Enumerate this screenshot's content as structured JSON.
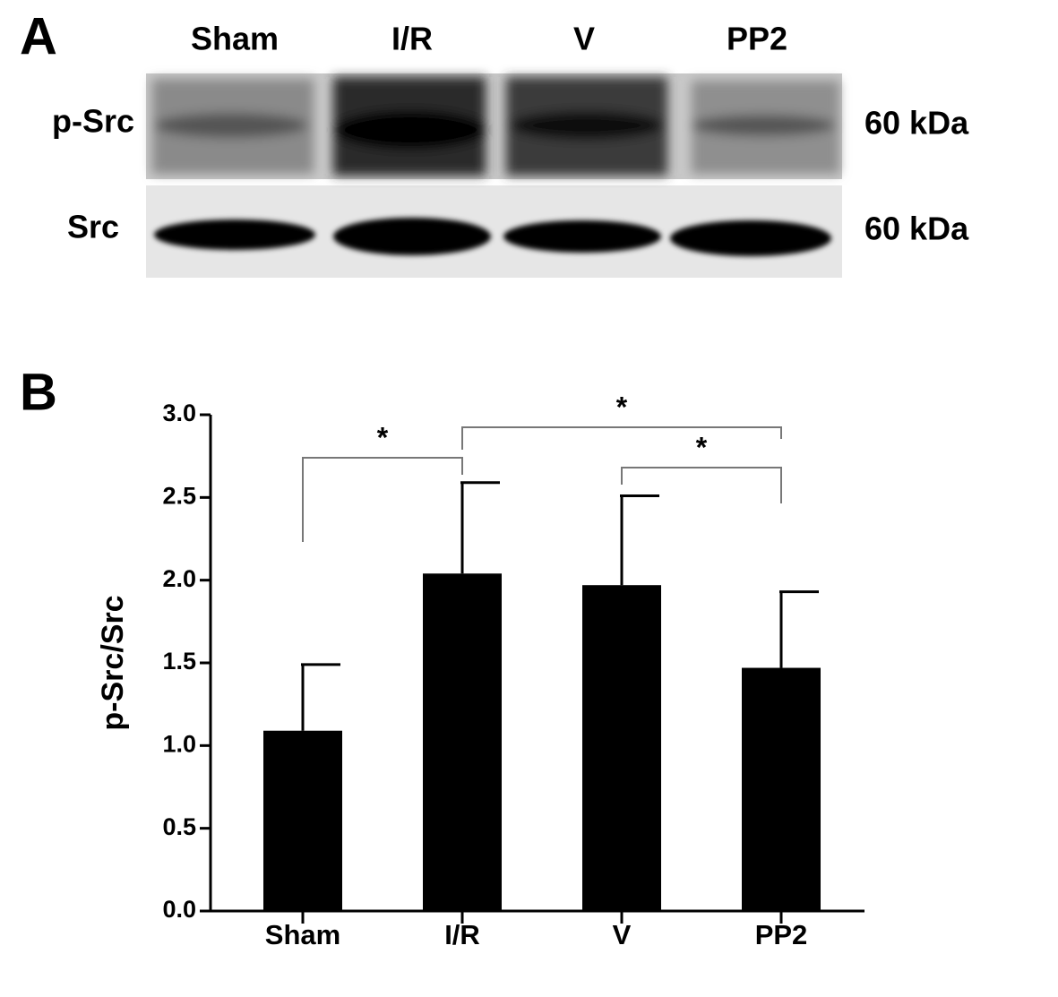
{
  "panel_a": {
    "label": "A",
    "lanes": [
      "Sham",
      "I/R",
      "V",
      "PP2"
    ],
    "rows": [
      {
        "name": "p-Src",
        "size": "60 kDa"
      },
      {
        "name": "Src",
        "size": "60 kDa"
      }
    ]
  },
  "chart_data": {
    "type": "bar",
    "panel_label": "B",
    "ylabel": "p-Src/Src",
    "categories": [
      "Sham",
      "I/R",
      "V",
      "PP2"
    ],
    "values": [
      1.09,
      2.04,
      1.97,
      1.47
    ],
    "errors": [
      0.4,
      0.55,
      0.54,
      0.46
    ],
    "color": "#000000",
    "ylim": [
      0,
      3
    ],
    "yticks": [
      {
        "value": 0,
        "label": "0.0"
      },
      0.5,
      {
        "value": 1,
        "label": "1.0"
      },
      1.5,
      {
        "value": 2,
        "label": "2.0"
      },
      2.5,
      {
        "value": 3,
        "label": "3.0"
      }
    ],
    "significance": [
      {
        "from": "Sham",
        "to": "I/R",
        "label": "*"
      },
      {
        "from": "I/R",
        "to": "PP2",
        "label": "*"
      },
      {
        "from": "V",
        "to": "PP2",
        "label": "*"
      }
    ]
  }
}
